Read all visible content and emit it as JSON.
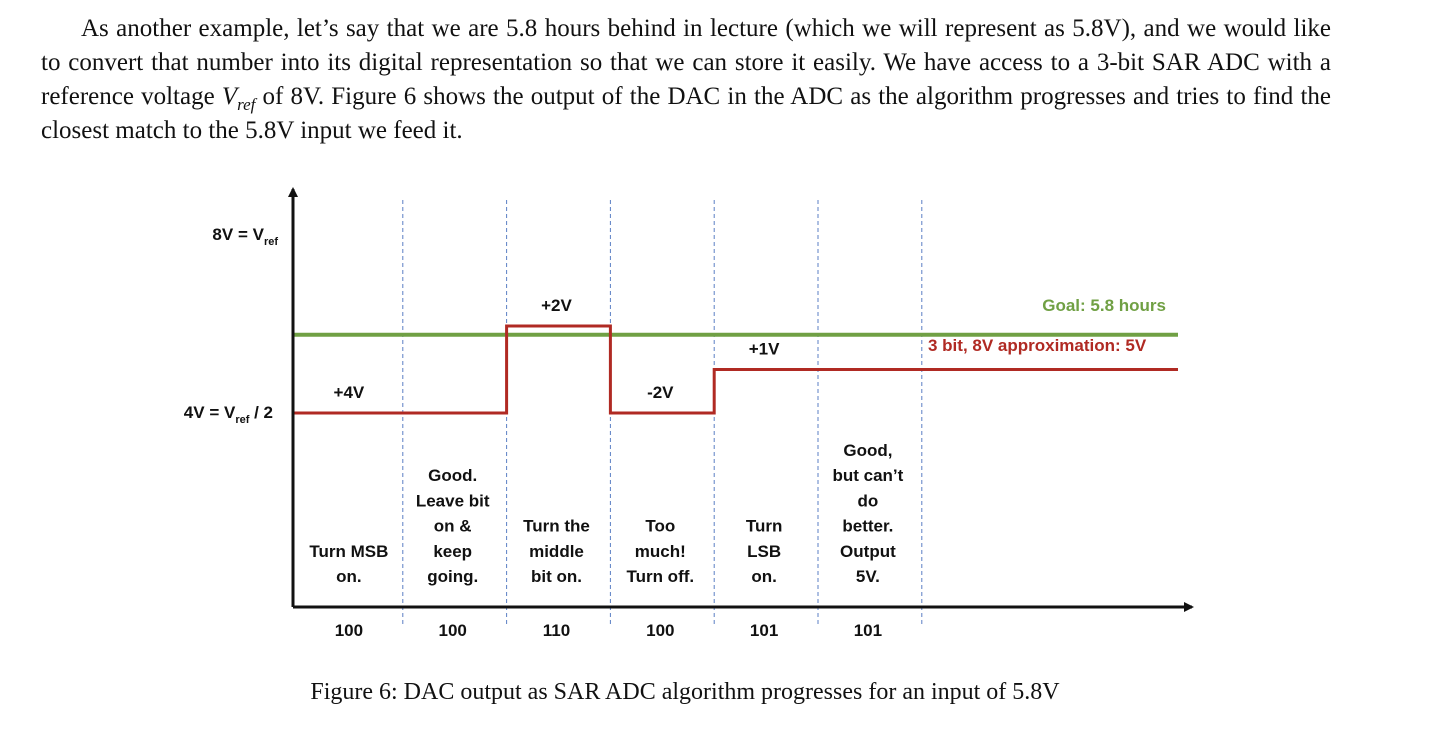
{
  "paragraph": {
    "part1": "As another example, let’s say that we are 5.8 hours behind in lecture (which we will represent as 5.8V), and we would like to convert that number into its digital representation so that we can store it easily. We have access to a 3-bit SAR ADC with a reference voltage ",
    "vref_main": "V",
    "vref_sub": "ref",
    "part2": " of 8V. Figure 6 shows the output of the DAC in the ADC as the algorithm progresses and tries to find the closest match to the 5.8V input we feed it."
  },
  "diagram": {
    "y_labels": {
      "top_main": "8V = V",
      "top_sub": "ref",
      "mid_main": "4V = V",
      "mid_sub": "ref",
      "mid_suffix": " / 2"
    },
    "goal_label": "Goal: 5.8 hours",
    "approx_label": "3 bit, 8V approximation: 5V",
    "goal_value": 5.8,
    "dac_levels": [
      4,
      4,
      6,
      4,
      5,
      5
    ],
    "steps": [
      {
        "delta": "+4V",
        "desc": [
          "Turn MSB",
          "on."
        ],
        "code": "100"
      },
      {
        "delta": "",
        "desc": [
          "Good.",
          "Leave bit",
          "on &",
          "keep",
          "going."
        ],
        "code": "100"
      },
      {
        "delta": "+2V",
        "desc": [
          "Turn the",
          "middle",
          "bit on."
        ],
        "code": "110"
      },
      {
        "delta": "-2V",
        "desc": [
          "Too",
          "much!",
          "Turn off."
        ],
        "code": "100"
      },
      {
        "delta": "+1V",
        "desc": [
          "Turn",
          "LSB",
          "on."
        ],
        "code": "101"
      },
      {
        "delta": "",
        "desc": [
          "Good,",
          "but can’t",
          "do",
          "better.",
          "Output",
          "5V."
        ],
        "code": "101"
      }
    ],
    "colors": {
      "goal": "#70a044",
      "dac": "#b02a23",
      "axis": "#111111",
      "divider": "#5b7fc4"
    }
  },
  "caption": "Figure 6: DAC output as SAR ADC algorithm progresses for an input of 5.8V"
}
